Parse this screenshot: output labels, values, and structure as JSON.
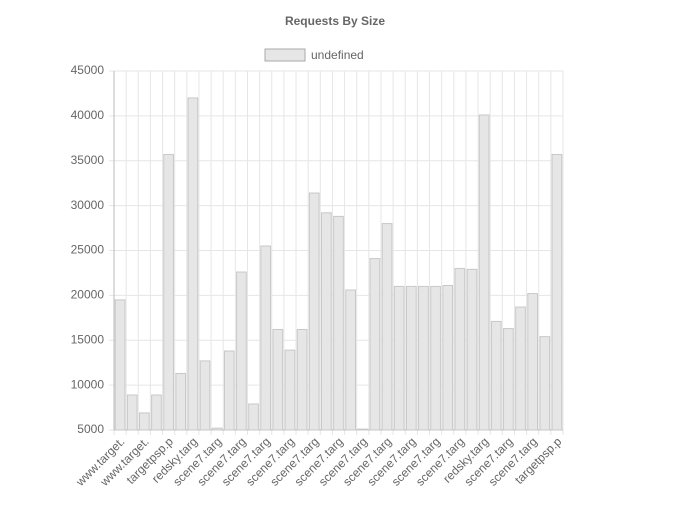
{
  "chart_data": {
    "type": "bar",
    "title": "Requests By Size",
    "categories": [
      "www.target.",
      null,
      "www.target.",
      null,
      "targetpsp.p",
      null,
      "redsky.targ",
      null,
      "scene7.targ",
      null,
      "scene7.targ",
      null,
      "scene7.targ",
      null,
      "scene7.targ",
      null,
      "scene7.targ",
      null,
      "scene7.targ",
      null,
      "scene7.targ",
      null,
      "scene7.targ",
      null,
      "scene7.targ",
      null,
      "scene7.targ",
      null,
      "scene7.targ",
      null,
      "redsky.targ",
      null,
      "scene7.targ",
      null,
      "scene7.targ",
      null,
      "targetpsp.p"
    ],
    "series": [
      {
        "name": "undefined",
        "color": "#e6e6e6",
        "values": [
          19500,
          8900,
          6900,
          8900,
          35700,
          11300,
          42000,
          12700,
          5200,
          13800,
          22600,
          7900,
          25500,
          16200,
          13900,
          16200,
          31400,
          29200,
          28800,
          20600,
          5100,
          24100,
          28000,
          21000,
          21000,
          21000,
          21000,
          21100,
          23000,
          22900,
          40100,
          17100,
          16300,
          18700,
          20200,
          15400,
          35700
        ]
      }
    ],
    "ylim": [
      5000,
      45000
    ],
    "yticks": [
      5000,
      10000,
      15000,
      20000,
      25000,
      30000,
      35000,
      40000,
      45000
    ],
    "grid": true,
    "legend": "top"
  }
}
